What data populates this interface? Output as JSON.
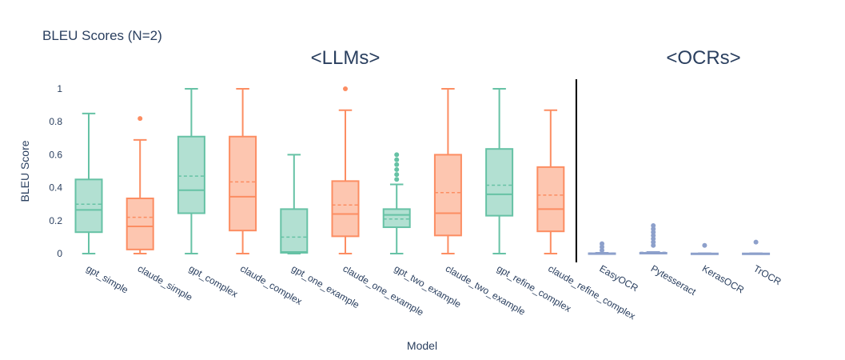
{
  "chart_data": {
    "type": "box",
    "title": "BLEU Scores (N=2)",
    "xlabel": "Model",
    "ylabel": "BLEU Score",
    "ylim": [
      0,
      1
    ],
    "yticks": [
      0,
      0.2,
      0.4,
      0.6,
      0.8,
      1
    ],
    "ytick_labels": [
      "0",
      "0.2",
      "0.4",
      "0.6",
      "0.8",
      "1"
    ],
    "grid": false,
    "show_mean": true,
    "group_labels": [
      "<LLMs>",
      "<OCRs>"
    ],
    "colors": {
      "llm_green": "#66c2a5",
      "llm_orange": "#fc8d62",
      "ocr_blue": "#8da0cb",
      "separator": "#000000",
      "text": "#2a3f5f"
    },
    "series": [
      {
        "category": "gpt_simple",
        "color": "#66c2a5",
        "min": 0,
        "q1": 0.13,
        "median": 0.265,
        "q3": 0.45,
        "max": 0.85,
        "mean": 0.3,
        "outliers": []
      },
      {
        "category": "claude_simple",
        "color": "#fc8d62",
        "min": 0,
        "q1": 0.025,
        "median": 0.165,
        "q3": 0.335,
        "max": 0.69,
        "mean": 0.22,
        "outliers": [
          0.82
        ]
      },
      {
        "category": "gpt_complex",
        "color": "#66c2a5",
        "min": 0,
        "q1": 0.245,
        "median": 0.385,
        "q3": 0.71,
        "max": 1.0,
        "mean": 0.47,
        "outliers": []
      },
      {
        "category": "claude_complex",
        "color": "#fc8d62",
        "min": 0,
        "q1": 0.14,
        "median": 0.345,
        "q3": 0.71,
        "max": 1.0,
        "mean": 0.435,
        "outliers": []
      },
      {
        "category": "gpt_one_example",
        "color": "#66c2a5",
        "min": 0,
        "q1": 0.005,
        "median": 0.01,
        "q3": 0.27,
        "max": 0.6,
        "mean": 0.1,
        "outliers": []
      },
      {
        "category": "claude_one_example",
        "color": "#fc8d62",
        "min": 0,
        "q1": 0.105,
        "median": 0.24,
        "q3": 0.44,
        "max": 0.87,
        "mean": 0.295,
        "outliers": [
          1.0
        ]
      },
      {
        "category": "gpt_two_example",
        "color": "#66c2a5",
        "min": 0,
        "q1": 0.16,
        "median": 0.235,
        "q3": 0.27,
        "max": 0.42,
        "mean": 0.21,
        "outliers": [
          0.45,
          0.48,
          0.51,
          0.54,
          0.57,
          0.6
        ]
      },
      {
        "category": "claude_two_example",
        "color": "#fc8d62",
        "min": 0,
        "q1": 0.11,
        "median": 0.245,
        "q3": 0.6,
        "max": 1.0,
        "mean": 0.37,
        "outliers": []
      },
      {
        "category": "gpt_refine_complex",
        "color": "#66c2a5",
        "min": 0,
        "q1": 0.23,
        "median": 0.36,
        "q3": 0.635,
        "max": 1.0,
        "mean": 0.415,
        "outliers": []
      },
      {
        "category": "claude_refine_complex",
        "color": "#fc8d62",
        "min": 0,
        "q1": 0.135,
        "median": 0.27,
        "q3": 0.525,
        "max": 0.87,
        "mean": 0.355,
        "outliers": []
      },
      {
        "category": "EasyOCR",
        "color": "#8da0cb",
        "min": 0,
        "q1": 0,
        "median": 0,
        "q3": 0.002,
        "max": 0.005,
        "mean": 0.003,
        "outliers": [
          0.02,
          0.04,
          0.06
        ]
      },
      {
        "category": "Pytesseract",
        "color": "#8da0cb",
        "min": 0,
        "q1": 0,
        "median": 0,
        "q3": 0.005,
        "max": 0.01,
        "mean": 0.008,
        "outliers": [
          0.05,
          0.07,
          0.09,
          0.11,
          0.13,
          0.15,
          0.17
        ]
      },
      {
        "category": "KerasOCR",
        "color": "#8da0cb",
        "min": 0,
        "q1": 0,
        "median": 0,
        "q3": 0.001,
        "max": 0.002,
        "mean": 0.001,
        "outliers": [
          0.05
        ]
      },
      {
        "category": "TrOCR",
        "color": "#8da0cb",
        "min": 0,
        "q1": 0,
        "median": 0,
        "q3": 0.001,
        "max": 0.002,
        "mean": 0.001,
        "outliers": [
          0.07
        ]
      }
    ]
  }
}
